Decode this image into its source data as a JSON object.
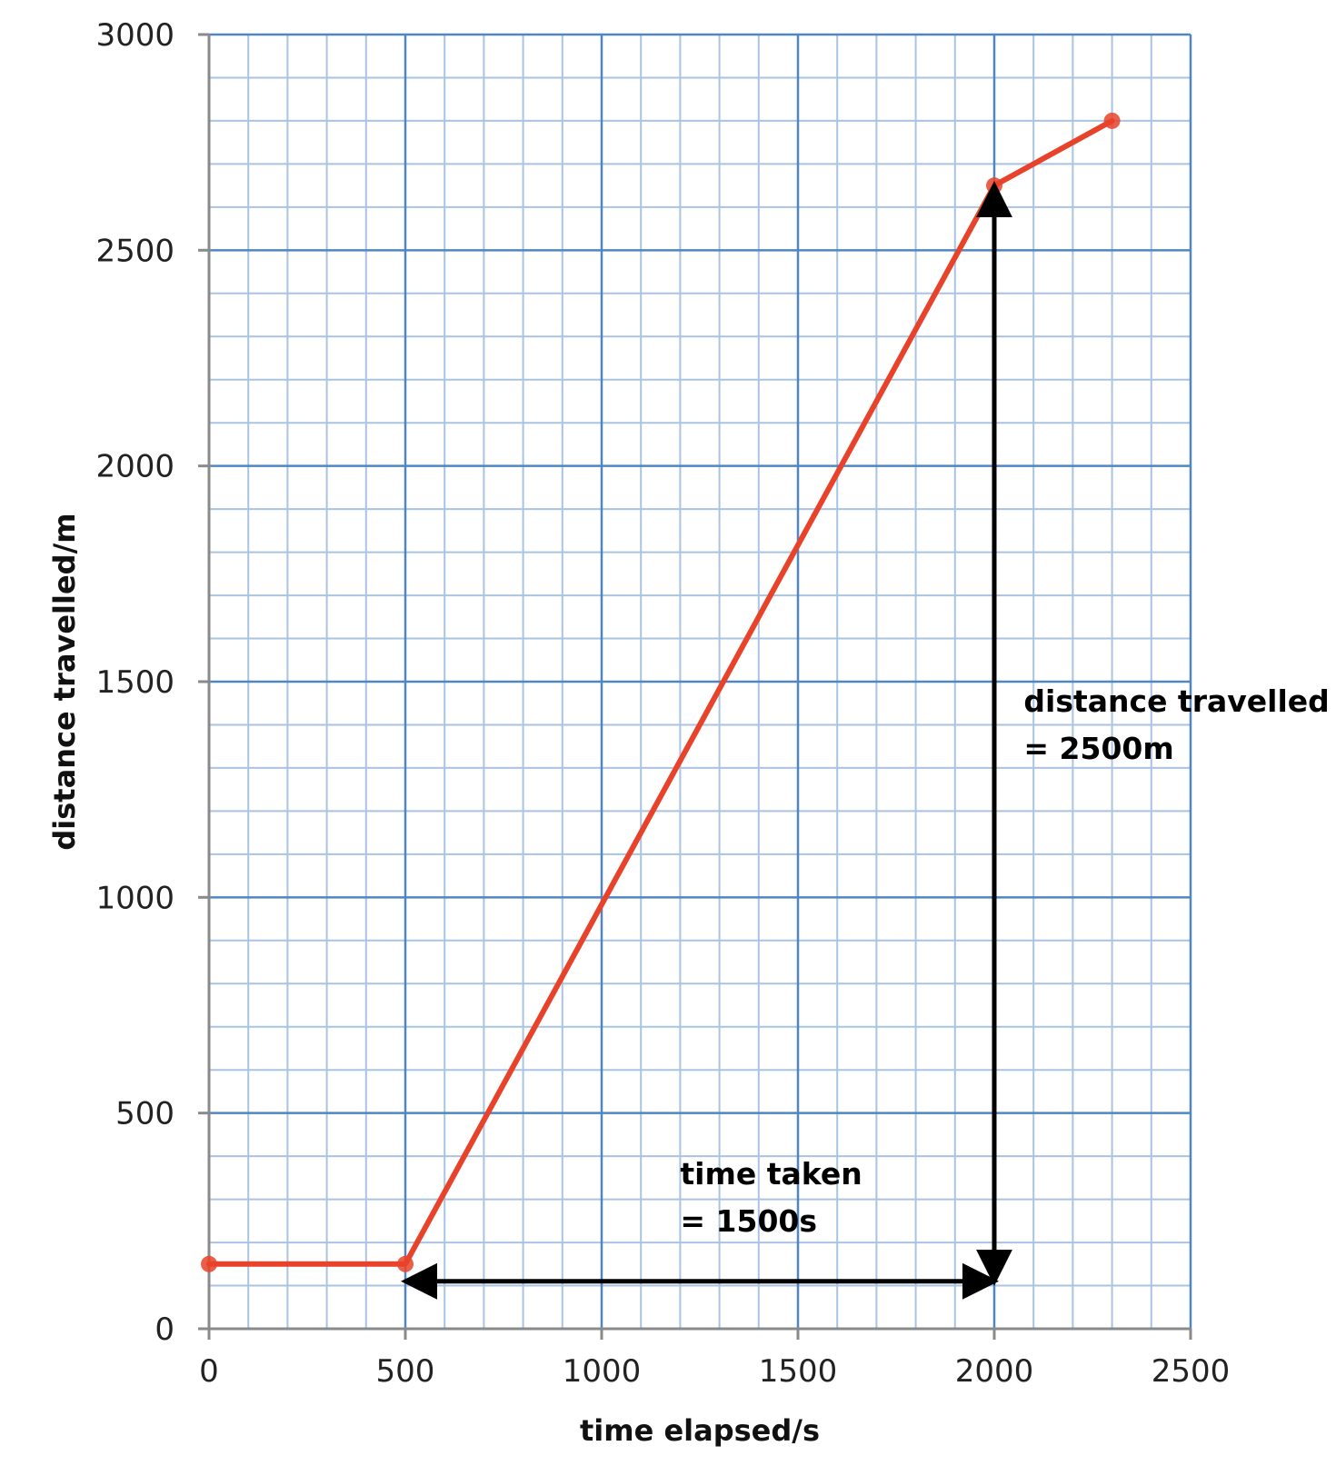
{
  "chart_data": {
    "type": "line",
    "xlabel": "time elapsed/s",
    "ylabel": "distance travelled/m",
    "xlim": [
      0,
      2500
    ],
    "ylim": [
      0,
      3000
    ],
    "x_ticks": [
      "0",
      "500",
      "1000",
      "1500",
      "2000",
      "2500"
    ],
    "y_ticks": [
      "0",
      "500",
      "1000",
      "1500",
      "2000",
      "2500",
      "3000"
    ],
    "grid": {
      "major_step_x": 500,
      "minor_step_x": 100,
      "major_step_y": 500,
      "minor_step_y": 100
    },
    "series": [
      {
        "color": "#e8432a",
        "points": [
          {
            "x": 0,
            "y": 150
          },
          {
            "x": 500,
            "y": 150
          },
          {
            "x": 2000,
            "y": 2650
          },
          {
            "x": 2300,
            "y": 2800
          }
        ]
      }
    ],
    "annotations": [
      {
        "id": "distance",
        "lines": [
          "distance travelled",
          "= 2500m"
        ]
      },
      {
        "id": "time",
        "lines": [
          "time taken",
          "= 1500s"
        ]
      }
    ],
    "arrows": [
      {
        "id": "time-arrow",
        "from": [
          500,
          110
        ],
        "to": [
          2000,
          110
        ]
      },
      {
        "id": "distance-arrow",
        "from": [
          2000,
          110
        ],
        "to": [
          2000,
          2650
        ]
      }
    ],
    "colors": {
      "major_grid": "#4f86c6",
      "minor_grid": "#a9c3e3",
      "line": "#e8432a",
      "arrow": "#000000"
    }
  }
}
